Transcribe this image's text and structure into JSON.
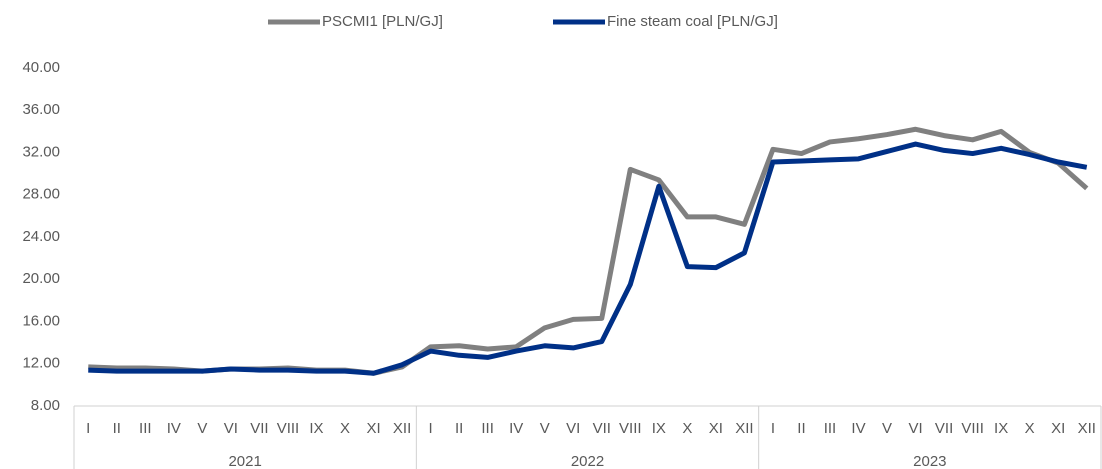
{
  "chart_data": {
    "type": "line",
    "categories": [
      "I",
      "II",
      "III",
      "IV",
      "V",
      "VI",
      "VII",
      "VIII",
      "IX",
      "X",
      "XI",
      "XII",
      "I",
      "II",
      "III",
      "IV",
      "V",
      "VI",
      "VII",
      "VIII",
      "IX",
      "X",
      "XI",
      "XII",
      "I",
      "II",
      "III",
      "IV",
      "V",
      "VI",
      "VII",
      "VIII",
      "IX",
      "X",
      "XI",
      "XII"
    ],
    "category_groups": [
      "2021",
      "2022",
      "2023"
    ],
    "series": [
      {
        "name": "PSCMI1 [PLN/GJ]",
        "color": "#808080",
        "values": [
          11.7,
          11.6,
          11.6,
          11.5,
          11.3,
          11.5,
          11.5,
          11.6,
          11.4,
          11.4,
          11.1,
          11.7,
          13.6,
          13.7,
          13.4,
          13.6,
          15.4,
          16.2,
          16.3,
          30.4,
          29.4,
          25.9,
          25.9,
          25.2,
          32.3,
          31.9,
          33.0,
          33.3,
          33.7,
          34.2,
          33.6,
          33.2,
          34.0,
          32.0,
          31.0,
          28.6
        ]
      },
      {
        "name": "Fine steam coal [PLN/GJ]",
        "color": "#003087",
        "values": [
          11.4,
          11.3,
          11.3,
          11.3,
          11.3,
          11.5,
          11.4,
          11.4,
          11.3,
          11.3,
          11.1,
          11.9,
          13.2,
          12.8,
          12.6,
          13.2,
          13.7,
          13.5,
          14.1,
          19.5,
          28.8,
          21.2,
          21.1,
          22.5,
          31.1,
          31.2,
          31.3,
          31.4,
          32.1,
          32.8,
          32.2,
          31.9,
          32.4,
          31.8,
          31.1,
          30.6
        ]
      }
    ],
    "ylim": [
      8,
      40
    ],
    "yticks": [
      {
        "value": 8,
        "label": "8.00"
      },
      {
        "value": 12,
        "label": "12.00"
      },
      {
        "value": 16,
        "label": "16.00"
      },
      {
        "value": 20,
        "label": "20.00"
      },
      {
        "value": 24,
        "label": "24.00"
      },
      {
        "value": 28,
        "label": "28.00"
      },
      {
        "value": 32,
        "label": "32.00"
      },
      {
        "value": 36,
        "label": "36.00"
      },
      {
        "value": 40,
        "label": "40.00"
      }
    ],
    "grid": false,
    "legend": "top"
  }
}
